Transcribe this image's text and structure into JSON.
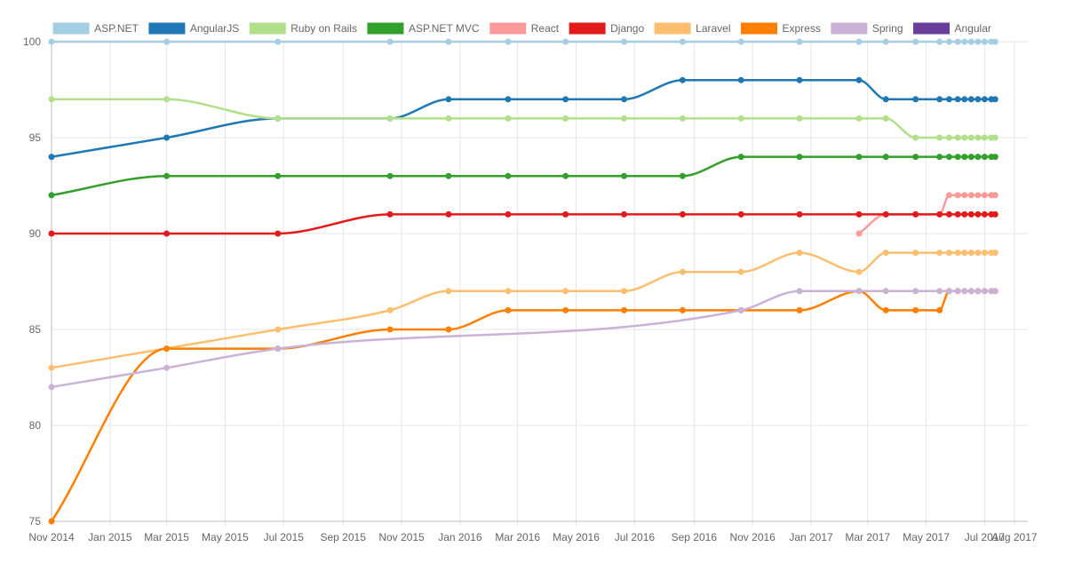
{
  "chart_data": {
    "type": "line",
    "title": "",
    "xlabel": "",
    "ylabel": "",
    "x_ticks": [
      "Nov 2014",
      "Jan 2015",
      "Mar 2015",
      "May 2015",
      "Jul 2015",
      "Sep 2015",
      "Nov 2015",
      "Jan 2016",
      "Mar 2016",
      "May 2016",
      "Jul 2016",
      "Sep 2016",
      "Nov 2016",
      "Jan 2017",
      "Mar 2017",
      "May 2017",
      "Jul 2017",
      "Aug 2017"
    ],
    "y_ticks": [
      75,
      80,
      85,
      90,
      95,
      100
    ],
    "ylim": [
      75,
      100
    ],
    "xlim": [
      "2014-11-01",
      "2017-08-15"
    ],
    "grid": true,
    "legend_position": "top",
    "series": [
      {
        "name": "ASP.NET",
        "color": "#a6cee3",
        "points": [
          [
            "2014-11-01",
            100
          ],
          [
            "2015-03-01",
            100
          ],
          [
            "2015-06-25",
            100
          ],
          [
            "2015-10-20",
            100
          ],
          [
            "2015-12-20",
            100
          ],
          [
            "2016-02-20",
            100
          ],
          [
            "2016-04-20",
            100
          ],
          [
            "2016-06-20",
            100
          ],
          [
            "2016-08-20",
            100
          ],
          [
            "2016-10-20",
            100
          ],
          [
            "2016-12-20",
            100
          ],
          [
            "2017-02-20",
            100
          ],
          [
            "2017-03-20",
            100
          ],
          [
            "2017-04-20",
            100
          ],
          [
            "2017-05-15",
            100
          ],
          [
            "2017-05-25",
            100
          ],
          [
            "2017-06-03",
            100
          ],
          [
            "2017-06-10",
            100
          ],
          [
            "2017-06-17",
            100
          ],
          [
            "2017-06-24",
            100
          ],
          [
            "2017-07-01",
            100
          ],
          [
            "2017-07-08",
            100
          ],
          [
            "2017-07-12",
            100
          ]
        ]
      },
      {
        "name": "AngularJS",
        "color": "#1f78b4",
        "points": [
          [
            "2014-11-01",
            94
          ],
          [
            "2015-03-01",
            95
          ],
          [
            "2015-06-25",
            96
          ],
          [
            "2015-10-20",
            96
          ],
          [
            "2015-12-20",
            97
          ],
          [
            "2016-02-20",
            97
          ],
          [
            "2016-04-20",
            97
          ],
          [
            "2016-06-20",
            97
          ],
          [
            "2016-08-20",
            98
          ],
          [
            "2016-10-20",
            98
          ],
          [
            "2016-12-20",
            98
          ],
          [
            "2017-02-20",
            98
          ],
          [
            "2017-03-20",
            97
          ],
          [
            "2017-04-20",
            97
          ],
          [
            "2017-05-15",
            97
          ],
          [
            "2017-05-25",
            97
          ],
          [
            "2017-06-03",
            97
          ],
          [
            "2017-06-10",
            97
          ],
          [
            "2017-06-17",
            97
          ],
          [
            "2017-06-24",
            97
          ],
          [
            "2017-07-01",
            97
          ],
          [
            "2017-07-08",
            97
          ],
          [
            "2017-07-12",
            97
          ]
        ]
      },
      {
        "name": "Ruby on Rails",
        "color": "#b2df8a",
        "points": [
          [
            "2014-11-01",
            97
          ],
          [
            "2015-03-01",
            97
          ],
          [
            "2015-06-25",
            96
          ],
          [
            "2015-10-20",
            96
          ],
          [
            "2015-12-20",
            96
          ],
          [
            "2016-02-20",
            96
          ],
          [
            "2016-04-20",
            96
          ],
          [
            "2016-06-20",
            96
          ],
          [
            "2016-08-20",
            96
          ],
          [
            "2016-10-20",
            96
          ],
          [
            "2016-12-20",
            96
          ],
          [
            "2017-02-20",
            96
          ],
          [
            "2017-03-20",
            96
          ],
          [
            "2017-04-20",
            95
          ],
          [
            "2017-05-15",
            95
          ],
          [
            "2017-05-25",
            95
          ],
          [
            "2017-06-03",
            95
          ],
          [
            "2017-06-10",
            95
          ],
          [
            "2017-06-17",
            95
          ],
          [
            "2017-06-24",
            95
          ],
          [
            "2017-07-01",
            95
          ],
          [
            "2017-07-08",
            95
          ],
          [
            "2017-07-12",
            95
          ]
        ]
      },
      {
        "name": "ASP.NET MVC",
        "color": "#33a02c",
        "points": [
          [
            "2014-11-01",
            92
          ],
          [
            "2015-03-01",
            93
          ],
          [
            "2015-06-25",
            93
          ],
          [
            "2015-10-20",
            93
          ],
          [
            "2015-12-20",
            93
          ],
          [
            "2016-02-20",
            93
          ],
          [
            "2016-04-20",
            93
          ],
          [
            "2016-06-20",
            93
          ],
          [
            "2016-08-20",
            93
          ],
          [
            "2016-10-20",
            94
          ],
          [
            "2016-12-20",
            94
          ],
          [
            "2017-02-20",
            94
          ],
          [
            "2017-03-20",
            94
          ],
          [
            "2017-04-20",
            94
          ],
          [
            "2017-05-15",
            94
          ],
          [
            "2017-05-25",
            94
          ],
          [
            "2017-06-03",
            94
          ],
          [
            "2017-06-10",
            94
          ],
          [
            "2017-06-17",
            94
          ],
          [
            "2017-06-24",
            94
          ],
          [
            "2017-07-01",
            94
          ],
          [
            "2017-07-08",
            94
          ],
          [
            "2017-07-12",
            94
          ]
        ]
      },
      {
        "name": "React",
        "color": "#fb9a99",
        "points": [
          [
            "2017-02-20",
            90
          ],
          [
            "2017-03-20",
            91
          ],
          [
            "2017-04-20",
            91
          ],
          [
            "2017-05-15",
            91
          ],
          [
            "2017-05-25",
            92
          ],
          [
            "2017-06-03",
            92
          ],
          [
            "2017-06-10",
            92
          ],
          [
            "2017-06-17",
            92
          ],
          [
            "2017-06-24",
            92
          ],
          [
            "2017-07-01",
            92
          ],
          [
            "2017-07-08",
            92
          ],
          [
            "2017-07-12",
            92
          ]
        ]
      },
      {
        "name": "Django",
        "color": "#e31a1c",
        "points": [
          [
            "2014-11-01",
            90
          ],
          [
            "2015-03-01",
            90
          ],
          [
            "2015-06-25",
            90
          ],
          [
            "2015-10-20",
            91
          ],
          [
            "2015-12-20",
            91
          ],
          [
            "2016-02-20",
            91
          ],
          [
            "2016-04-20",
            91
          ],
          [
            "2016-06-20",
            91
          ],
          [
            "2016-08-20",
            91
          ],
          [
            "2016-10-20",
            91
          ],
          [
            "2016-12-20",
            91
          ],
          [
            "2017-02-20",
            91
          ],
          [
            "2017-03-20",
            91
          ],
          [
            "2017-04-20",
            91
          ],
          [
            "2017-05-15",
            91
          ],
          [
            "2017-05-25",
            91
          ],
          [
            "2017-06-03",
            91
          ],
          [
            "2017-06-10",
            91
          ],
          [
            "2017-06-17",
            91
          ],
          [
            "2017-06-24",
            91
          ],
          [
            "2017-07-01",
            91
          ],
          [
            "2017-07-08",
            91
          ],
          [
            "2017-07-12",
            91
          ]
        ]
      },
      {
        "name": "Laravel",
        "color": "#fdbf6f",
        "points": [
          [
            "2014-11-01",
            83
          ],
          [
            "2015-06-25",
            85
          ],
          [
            "2015-10-20",
            86
          ],
          [
            "2015-12-20",
            87
          ],
          [
            "2016-02-20",
            87
          ],
          [
            "2016-04-20",
            87
          ],
          [
            "2016-06-20",
            87
          ],
          [
            "2016-08-20",
            88
          ],
          [
            "2016-10-20",
            88
          ],
          [
            "2016-12-20",
            89
          ],
          [
            "2017-02-20",
            88
          ],
          [
            "2017-03-20",
            89
          ],
          [
            "2017-04-20",
            89
          ],
          [
            "2017-05-15",
            89
          ],
          [
            "2017-05-25",
            89
          ],
          [
            "2017-06-03",
            89
          ],
          [
            "2017-06-10",
            89
          ],
          [
            "2017-06-17",
            89
          ],
          [
            "2017-06-24",
            89
          ],
          [
            "2017-07-01",
            89
          ],
          [
            "2017-07-08",
            89
          ],
          [
            "2017-07-12",
            89
          ]
        ]
      },
      {
        "name": "Express",
        "color": "#ff7f00",
        "points": [
          [
            "2014-11-01",
            75
          ],
          [
            "2015-03-01",
            84
          ],
          [
            "2015-06-25",
            84
          ],
          [
            "2015-10-20",
            85
          ],
          [
            "2015-12-20",
            85
          ],
          [
            "2016-02-20",
            86
          ],
          [
            "2016-04-20",
            86
          ],
          [
            "2016-06-20",
            86
          ],
          [
            "2016-08-20",
            86
          ],
          [
            "2016-10-20",
            86
          ],
          [
            "2016-12-20",
            86
          ],
          [
            "2017-02-20",
            87
          ],
          [
            "2017-03-20",
            86
          ],
          [
            "2017-04-20",
            86
          ],
          [
            "2017-05-15",
            86
          ],
          [
            "2017-05-25",
            87
          ],
          [
            "2017-06-03",
            87
          ],
          [
            "2017-06-10",
            87
          ],
          [
            "2017-06-17",
            87
          ],
          [
            "2017-06-24",
            87
          ],
          [
            "2017-07-01",
            87
          ],
          [
            "2017-07-08",
            87
          ],
          [
            "2017-07-12",
            87
          ]
        ]
      },
      {
        "name": "Spring",
        "color": "#cab2d6",
        "points": [
          [
            "2014-11-01",
            82
          ],
          [
            "2015-03-01",
            83
          ],
          [
            "2015-06-25",
            84
          ],
          [
            "2016-10-20",
            86
          ],
          [
            "2016-12-20",
            87
          ],
          [
            "2017-02-20",
            87
          ],
          [
            "2017-03-20",
            87
          ],
          [
            "2017-04-20",
            87
          ],
          [
            "2017-05-15",
            87
          ],
          [
            "2017-05-25",
            87
          ],
          [
            "2017-06-03",
            87
          ],
          [
            "2017-06-10",
            87
          ],
          [
            "2017-06-17",
            87
          ],
          [
            "2017-06-24",
            87
          ],
          [
            "2017-07-01",
            87
          ],
          [
            "2017-07-08",
            87
          ],
          [
            "2017-07-12",
            87
          ]
        ]
      },
      {
        "name": "Angular",
        "color": "#6a3d9a",
        "points": []
      }
    ]
  }
}
